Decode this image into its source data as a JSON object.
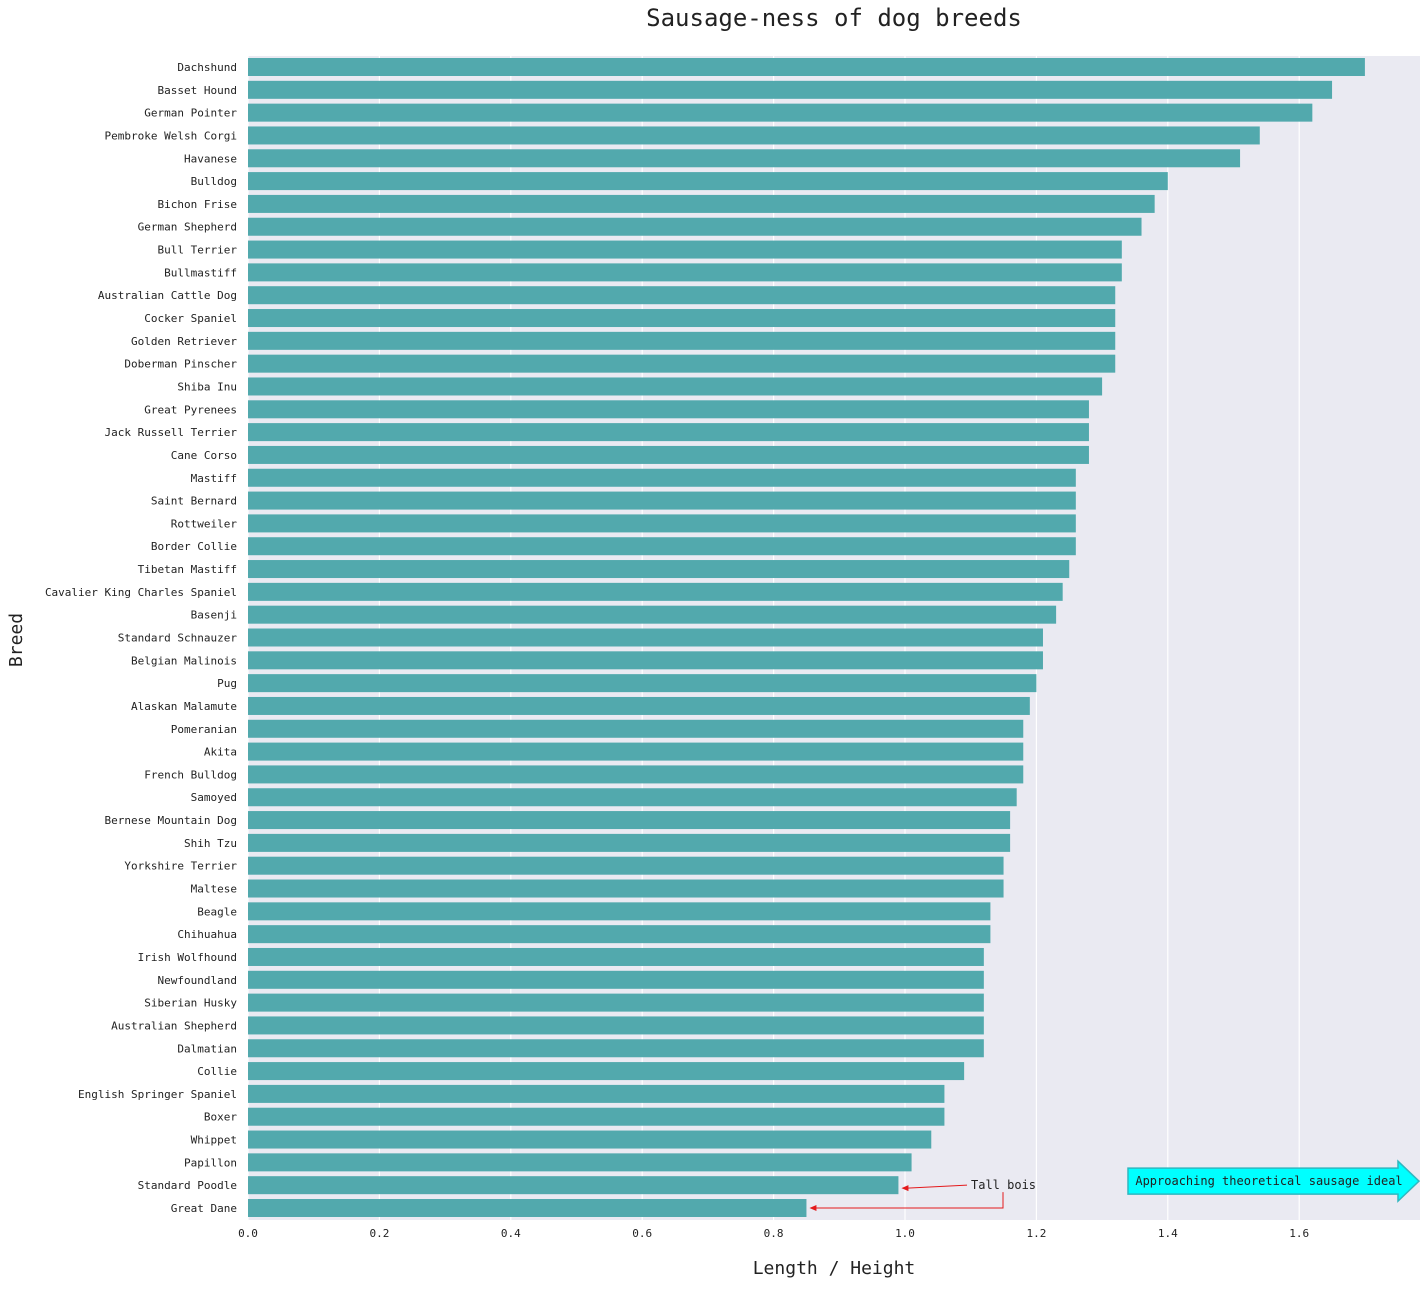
{
  "chart_data": {
    "type": "bar",
    "orientation": "horizontal",
    "title": "Sausage-ness of dog breeds",
    "xlabel": "Length / Height",
    "ylabel": "Breed",
    "xlim": [
      0,
      1.78
    ],
    "xticks": [
      "0.0",
      "0.2",
      "0.4",
      "0.6",
      "0.8",
      "1.0",
      "1.2",
      "1.4",
      "1.6"
    ],
    "grid": true,
    "categories": [
      "Dachshund",
      "Basset Hound",
      "German Pointer",
      "Pembroke Welsh Corgi",
      "Havanese",
      "Bulldog",
      "Bichon Frise",
      "German Shepherd",
      "Bull Terrier",
      "Bullmastiff",
      "Australian Cattle Dog",
      "Cocker Spaniel",
      "Golden Retriever",
      "Doberman Pinscher",
      "Shiba Inu",
      "Great Pyrenees",
      "Jack Russell Terrier",
      "Cane Corso",
      "Mastiff",
      "Saint Bernard",
      "Rottweiler",
      "Border Collie",
      "Tibetan Mastiff",
      "Cavalier King Charles Spaniel",
      "Basenji",
      "Standard Schnauzer",
      "Belgian Malinois",
      "Pug",
      "Alaskan Malamute",
      "Pomeranian",
      "Akita",
      "French Bulldog",
      "Samoyed",
      "Bernese Mountain Dog",
      "Shih Tzu",
      "Yorkshire Terrier",
      "Maltese",
      "Beagle",
      "Chihuahua",
      "Irish Wolfhound",
      "Newfoundland",
      "Siberian Husky",
      "Australian Shepherd",
      "Dalmatian",
      "Collie",
      "English Springer Spaniel",
      "Boxer",
      "Whippet",
      "Papillon",
      "Standard Poodle",
      "Great Dane"
    ],
    "values": [
      1.7,
      1.65,
      1.62,
      1.54,
      1.51,
      1.4,
      1.38,
      1.36,
      1.33,
      1.33,
      1.32,
      1.32,
      1.32,
      1.32,
      1.3,
      1.28,
      1.28,
      1.28,
      1.26,
      1.26,
      1.26,
      1.26,
      1.25,
      1.24,
      1.23,
      1.21,
      1.21,
      1.2,
      1.19,
      1.18,
      1.18,
      1.18,
      1.17,
      1.16,
      1.16,
      1.15,
      1.15,
      1.13,
      1.13,
      1.12,
      1.12,
      1.12,
      1.12,
      1.12,
      1.09,
      1.06,
      1.06,
      1.04,
      1.01,
      0.99,
      0.85
    ],
    "annotations": [
      {
        "text": "Tall bois",
        "targets": [
          "Standard Poodle",
          "Great Dane"
        ],
        "color": "#e41a1c"
      },
      {
        "text": "Approaching theoretical sausage ideal",
        "shape": "arrow-right",
        "color": "#00ffff"
      }
    ],
    "colors": {
      "bar": "#52a9ad",
      "plot_background": "#eaeaf2",
      "grid": "#ffffff",
      "annotation_arrow": "#e41a1c",
      "ideal_arrow_fill": "#00ffff",
      "ideal_arrow_edge": "#2fb8c0"
    }
  }
}
